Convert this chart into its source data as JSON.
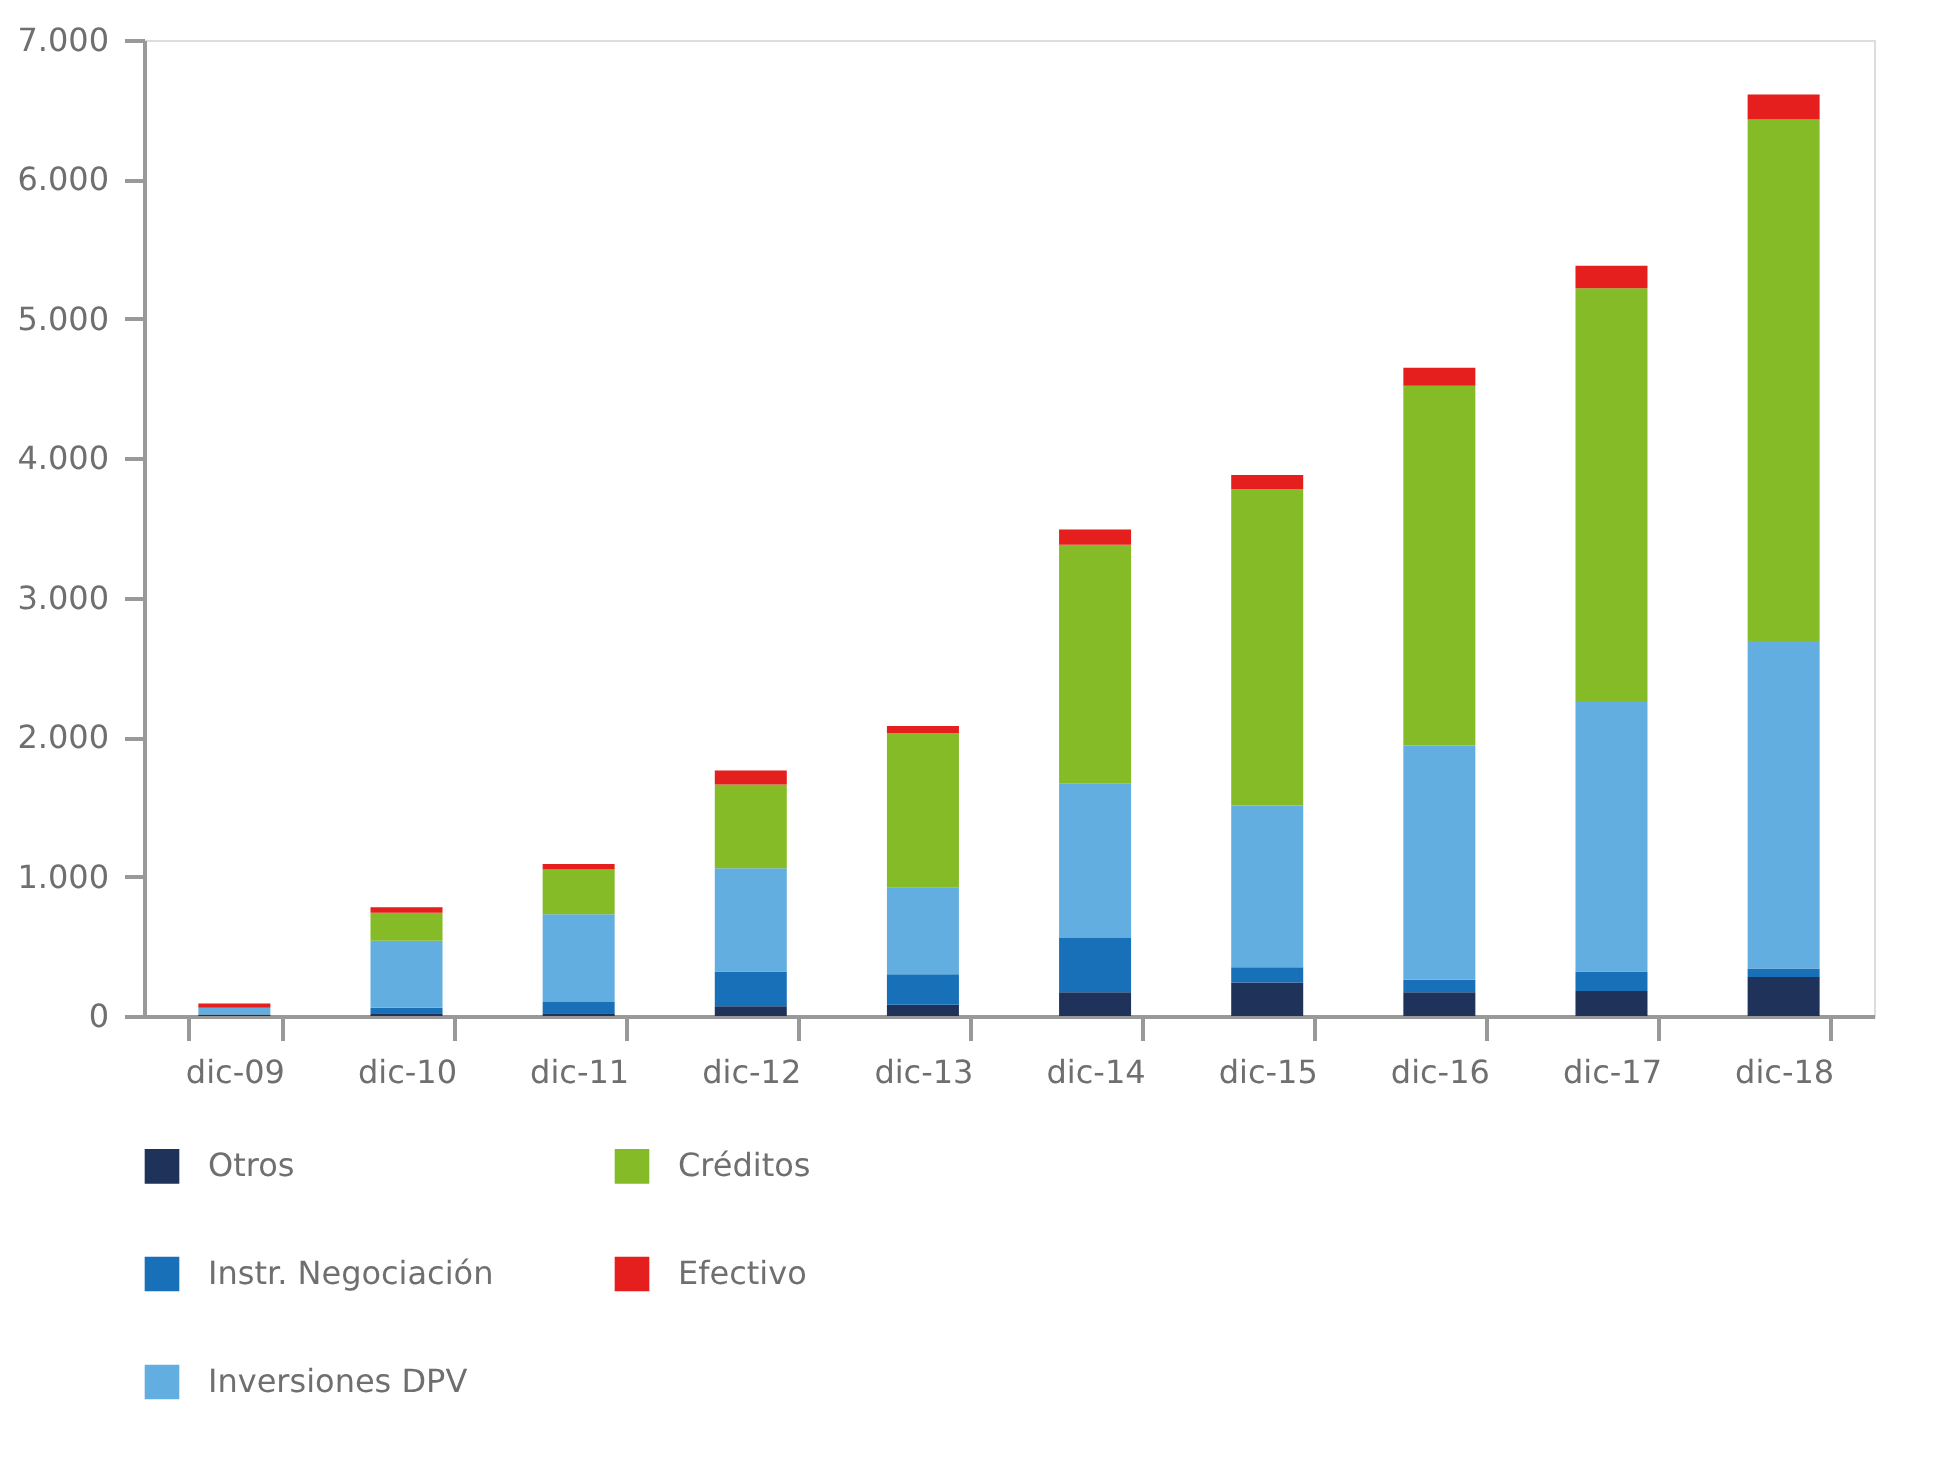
{
  "chart_data": {
    "type": "bar",
    "stacked": true,
    "categories": [
      "dic-09",
      "dic-10",
      "dic-11",
      "dic-12",
      "dic-13",
      "dic-14",
      "dic-15",
      "dic-16",
      "dic-17",
      "dic-18"
    ],
    "series": [
      {
        "name": "Otros",
        "color": "#1f3259",
        "values": [
          10,
          20,
          20,
          70,
          80,
          170,
          240,
          170,
          180,
          280
        ]
      },
      {
        "name": "Instr. Negociación",
        "color": "#1870b8",
        "values": [
          0,
          40,
          80,
          250,
          220,
          390,
          110,
          90,
          140,
          60
        ]
      },
      {
        "name": "Inversiones DPV",
        "color": "#63aee0",
        "values": [
          50,
          480,
          630,
          740,
          620,
          1110,
          1160,
          1680,
          1940,
          2350
        ]
      },
      {
        "name": "Créditos",
        "color": "#84bb27",
        "values": [
          0,
          200,
          320,
          600,
          1110,
          1710,
          2270,
          2580,
          2960,
          3740
        ]
      },
      {
        "name": "Efectivo",
        "color": "#e41f1d",
        "values": [
          30,
          40,
          40,
          100,
          50,
          110,
          100,
          130,
          160,
          180
        ]
      }
    ],
    "ylim": [
      0,
      7000
    ],
    "yticks": [
      0,
      {
        "value": 1000,
        "label": "1.000"
      },
      {
        "value": 2000,
        "label": "2.000"
      },
      {
        "value": 3000,
        "label": "3.000"
      },
      {
        "value": 4000,
        "label": "4.000"
      },
      {
        "value": 5000,
        "label": "5.000"
      },
      {
        "value": 6000,
        "label": "6.000"
      },
      {
        "value": 7000,
        "label": "7.000"
      }
    ],
    "grid": false,
    "legend": "bottom"
  }
}
